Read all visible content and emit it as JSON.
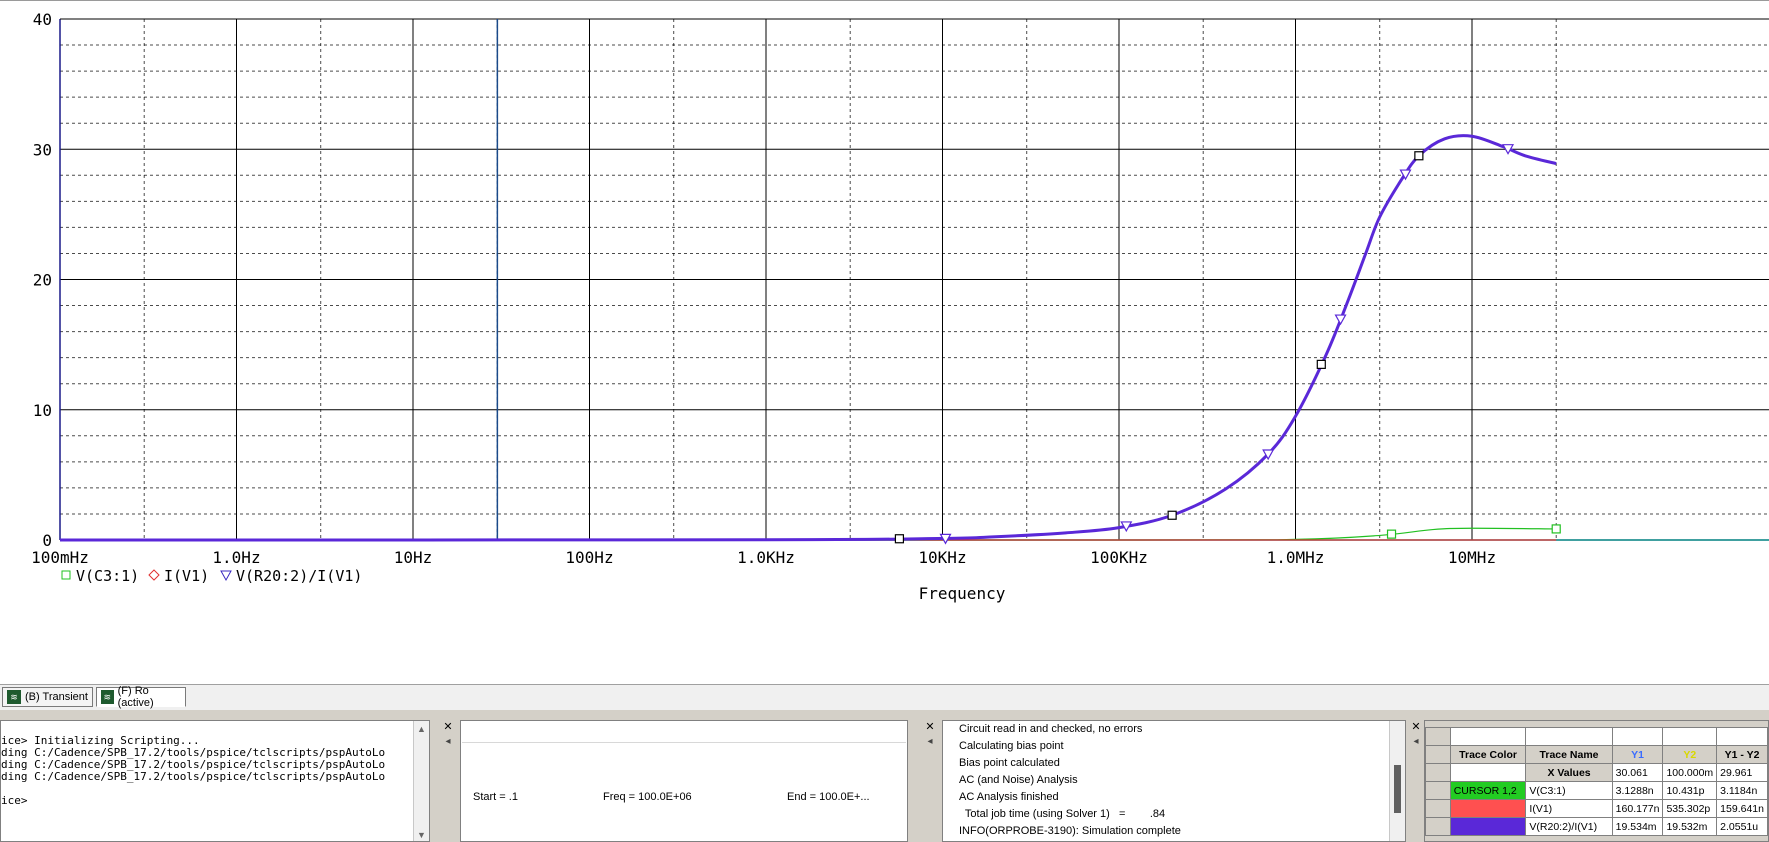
{
  "chart_data": {
    "type": "line",
    "x_scale": "log",
    "xlim": [
      0.1,
      30000000
    ],
    "ylim": [
      0,
      40
    ],
    "y_ticks": [
      0,
      10,
      20,
      30,
      40
    ],
    "y_tick_labels": [
      "0",
      "10",
      "20",
      "30",
      "40"
    ],
    "x_tick_values": [
      0.1,
      1,
      10,
      100,
      1000,
      10000,
      100000,
      1000000,
      10000000
    ],
    "x_tick_labels": [
      "100mHz",
      "1.0Hz",
      "10Hz",
      "100Hz",
      "1.0KHz",
      "10KHz",
      "100KHz",
      "1.0MHz",
      "10MHz"
    ],
    "xlabel": "Frequency",
    "grid": true,
    "cursor_x": 30.061,
    "series": [
      {
        "name": "V(C3:1)",
        "marker": "square",
        "color": "#22c022",
        "x": [
          0.1,
          100000,
          1000000,
          3000000,
          6000000,
          10000000,
          30000000
        ],
        "y": [
          0,
          0,
          0.05,
          0.35,
          0.8,
          0.9,
          0.85
        ]
      },
      {
        "name": "I(V1)",
        "marker": "diamond",
        "color": "#e03030",
        "x": [
          0.1,
          30000000
        ],
        "y": [
          0,
          0
        ]
      },
      {
        "name": "V(R20:2)/I(V1)",
        "marker": "triangle",
        "color": "#5a28d8",
        "x": [
          0.1,
          1000,
          10000,
          20000,
          50000,
          100000,
          200000,
          400000,
          700000,
          1000000,
          1500000,
          2000000,
          2500000,
          3000000,
          4000000,
          5000000,
          7000000,
          10000000,
          15000000,
          20000000,
          30000000
        ],
        "y": [
          0,
          0.02,
          0.12,
          0.25,
          0.55,
          0.95,
          1.9,
          3.9,
          6.6,
          9.5,
          14.3,
          18.5,
          22.0,
          24.8,
          27.7,
          29.5,
          30.8,
          31.0,
          30.2,
          29.5,
          28.9
        ]
      }
    ]
  },
  "tabs": [
    {
      "label": "(B) Transient",
      "icon": "waveform-icon"
    },
    {
      "label": "(F) Ro (active)",
      "icon": "waveform-icon"
    }
  ],
  "console": {
    "lines": [
      "ice> Initializing Scripting...",
      "ding C:/Cadence/SPB_17.2/tools/pspice/tclscripts/pspAutoLo",
      "ding C:/Cadence/SPB_17.2/tools/pspice/tclscripts/pspAutoLo",
      "ding C:/Cadence/SPB_17.2/tools/pspice/tclscripts/pspAutoLo",
      "",
      "ice>"
    ]
  },
  "sim_params": {
    "start": "Start = .1",
    "freq": "Freq = 100.0E+06",
    "end": "End = 100.0E+..."
  },
  "status": {
    "lines": [
      "Circuit read in and checked, no errors",
      "Calculating bias point",
      "Bias point calculated",
      "AC (and Noise) Analysis",
      "AC Analysis finished",
      "  Total job time (using Solver 1)   =        .84",
      "INFO(ORPROBE-3190): Simulation complete"
    ]
  },
  "cursor_table": {
    "headers": [
      "Trace Color",
      "Trace Name",
      "Y1",
      "Y2",
      "Y1 - Y2"
    ],
    "header_colors": {
      "Y1": "#3a6cff",
      "Y2": "#d8d800"
    },
    "xvalues_row": [
      "X Values",
      "30.061",
      "100.000m",
      "29.961"
    ],
    "rows": [
      {
        "color_label": "CURSOR 1,2",
        "color": "#22cc22",
        "name": "V(C3:1)",
        "y1": "3.1288n",
        "y2": "10.431p",
        "diff": "3.1184n"
      },
      {
        "color_label": "",
        "color": "#ff5050",
        "name": "I(V1)",
        "y1": "160.177n",
        "y2": "535.302p",
        "diff": "159.641n"
      },
      {
        "color_label": "",
        "color": "#5a28d8",
        "name": "V(R20:2)/I(V1)",
        "y1": "19.534m",
        "y2": "19.532m",
        "diff": "2.0551u"
      }
    ]
  }
}
